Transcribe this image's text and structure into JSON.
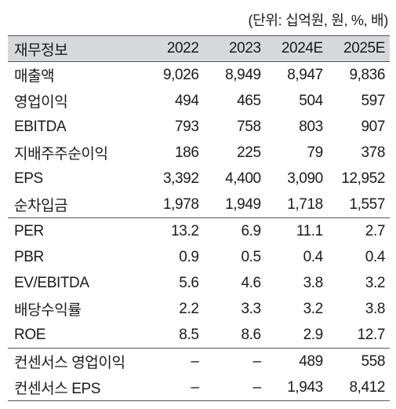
{
  "unit_note": "(단위: 십억원, 원, %, 배)",
  "header": {
    "label": "재무정보",
    "years": [
      "2022",
      "2023",
      "2024E",
      "2025E"
    ]
  },
  "rows": [
    {
      "label": "매출액",
      "values": [
        "9,026",
        "8,949",
        "8,947",
        "9,836"
      ]
    },
    {
      "label": "영업이익",
      "values": [
        "494",
        "465",
        "504",
        "597"
      ]
    },
    {
      "label": "EBITDA",
      "values": [
        "793",
        "758",
        "803",
        "907"
      ]
    },
    {
      "label": "지배주주순이익",
      "values": [
        "186",
        "225",
        "79",
        "378"
      ]
    },
    {
      "label": "EPS",
      "values": [
        "3,392",
        "4,400",
        "3,090",
        "12,952"
      ]
    },
    {
      "label": "순차입금",
      "values": [
        "1,978",
        "1,949",
        "1,718",
        "1,557"
      ]
    },
    {
      "label": "PER",
      "values": [
        "13.2",
        "6.9",
        "11.1",
        "2.7"
      ]
    },
    {
      "label": "PBR",
      "values": [
        "0.9",
        "0.5",
        "0.4",
        "0.4"
      ]
    },
    {
      "label": "EV/EBITDA",
      "values": [
        "5.6",
        "4.6",
        "3.8",
        "3.2"
      ]
    },
    {
      "label": "배당수익률",
      "values": [
        "2.2",
        "3.3",
        "3.2",
        "3.8"
      ]
    },
    {
      "label": "ROE",
      "values": [
        "8.5",
        "8.6",
        "2.9",
        "12.7"
      ]
    },
    {
      "label": "컨센서스 영업이익",
      "values": [
        "–",
        "–",
        "489",
        "558"
      ]
    },
    {
      "label": "컨센서스 EPS",
      "values": [
        "–",
        "–",
        "1,943",
        "8,412"
      ]
    }
  ],
  "colors": {
    "header_bg": "#d6d8db",
    "rule": "#555555",
    "text": "#1a1a1a"
  }
}
